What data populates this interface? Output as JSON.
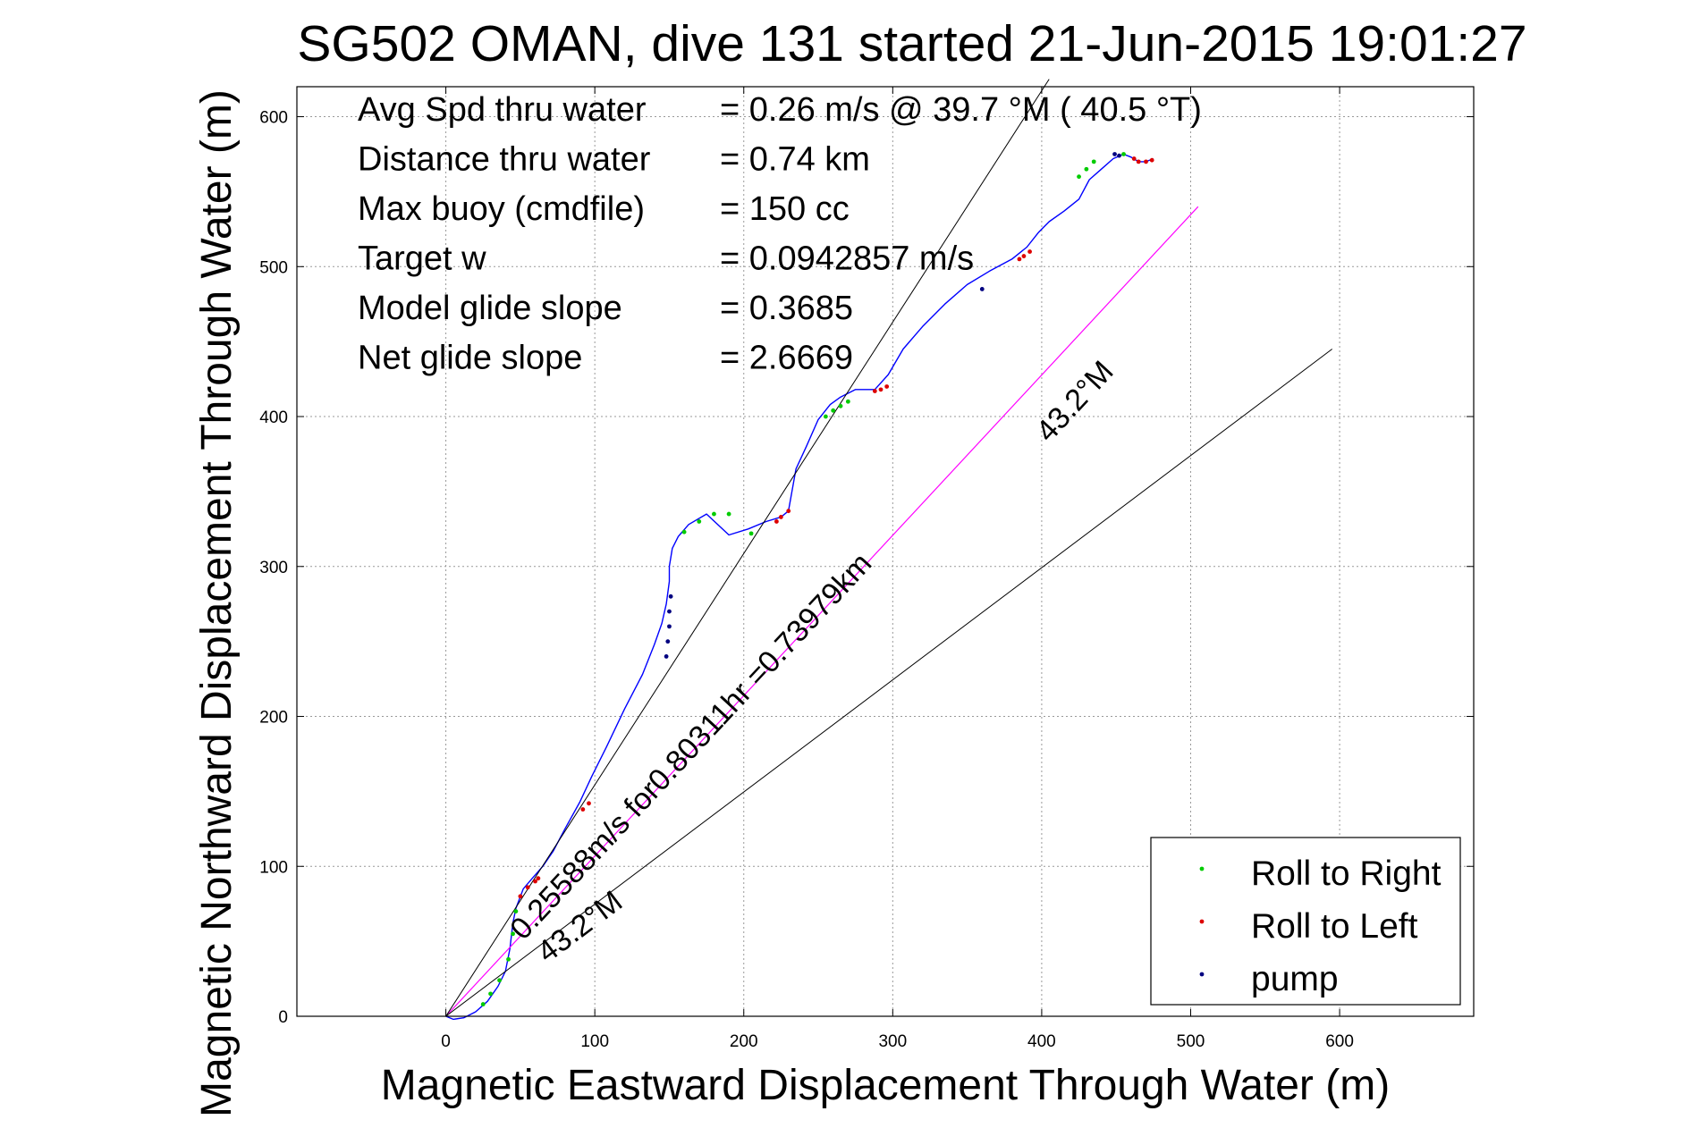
{
  "chart_data": {
    "type": "line",
    "title": "SG502 OMAN, dive 131 started 21-Jun-2015 19:01:27",
    "xlabel": "Magnetic Eastward Displacement Through Water (m)",
    "ylabel": "Magnetic Northward Displacement Through Water (m)",
    "xlim": [
      -100,
      690
    ],
    "ylim": [
      0,
      620
    ],
    "xticks": [
      "0",
      "100",
      "200",
      "300",
      "400",
      "500",
      "600"
    ],
    "yticks": [
      "0",
      "100",
      "200",
      "300",
      "400",
      "500",
      "600"
    ],
    "grid": true,
    "legend_position": "bottom-right",
    "info": [
      {
        "label": "Avg Spd thru water",
        "value": "=  0.26 m/s @  39.7 °M ( 40.5 °T)"
      },
      {
        "label": "Distance thru water",
        "value": "=  0.74 km"
      },
      {
        "label": "Max buoy (cmdfile)",
        "value": "= 150 cc"
      },
      {
        "label": "Target w",
        "value": "= 0.0942857 m/s"
      },
      {
        "label": "Model glide slope",
        "value": "= 0.3685"
      },
      {
        "label": "Net glide slope",
        "value": "= 2.6669"
      }
    ],
    "annotations": {
      "speed_text": "0.25588m/s for0.80311hr =0.73979km",
      "heading_upper": "43.2°M",
      "heading_lower": "43.2°M"
    },
    "legend": [
      {
        "label": "Roll to Right",
        "color": "#00cc00"
      },
      {
        "label": "Roll to Left",
        "color": "#dd0000"
      },
      {
        "label": "pump",
        "color": "#000080"
      }
    ],
    "colors": {
      "track": "#0000ff",
      "heading_line": "#ff00ff",
      "envelope": "#000000"
    },
    "series": [
      {
        "name": "track",
        "x": [
          0,
          5,
          12,
          20,
          28,
          35,
          40,
          43,
          45,
          47,
          52,
          58,
          65,
          72,
          80,
          90,
          98,
          108,
          120,
          132,
          140,
          145,
          148,
          150,
          150,
          152,
          156,
          163,
          175,
          190,
          203,
          215,
          225,
          230,
          235,
          242,
          250,
          258,
          265,
          275,
          288,
          297,
          307,
          320,
          335,
          350,
          365,
          380,
          390,
          398,
          405,
          415,
          425,
          432,
          440,
          448,
          455,
          460,
          465,
          470,
          475
        ],
        "y": [
          0,
          -2,
          -1,
          3,
          10,
          20,
          30,
          45,
          62,
          72,
          85,
          92,
          100,
          110,
          125,
          143,
          160,
          180,
          205,
          228,
          248,
          262,
          275,
          290,
          300,
          312,
          320,
          328,
          335,
          321,
          325,
          330,
          333,
          337,
          365,
          380,
          398,
          408,
          413,
          418,
          418,
          428,
          445,
          460,
          475,
          488,
          497,
          505,
          513,
          523,
          530,
          537,
          545,
          558,
          565,
          572,
          575,
          573,
          570,
          570,
          572
        ]
      },
      {
        "name": "heading_line",
        "x": [
          0,
          505
        ],
        "y": [
          0,
          540
        ]
      },
      {
        "name": "envelope_upper",
        "x": [
          0,
          405
        ],
        "y": [
          0,
          625
        ]
      },
      {
        "name": "envelope_lower",
        "x": [
          0,
          595
        ],
        "y": [
          0,
          445
        ]
      },
      {
        "name": "Roll to Right",
        "x": [
          25,
          30,
          36,
          42,
          45,
          47,
          160,
          170,
          180,
          190,
          205,
          255,
          260,
          265,
          270,
          425,
          430,
          435,
          455
        ],
        "y": [
          8,
          15,
          24,
          38,
          55,
          70,
          323,
          330,
          335,
          335,
          322,
          400,
          404,
          407,
          410,
          560,
          565,
          570,
          575
        ]
      },
      {
        "name": "Roll to Left",
        "x": [
          50,
          55,
          60,
          62,
          92,
          96,
          222,
          225,
          230,
          288,
          292,
          296,
          385,
          388,
          392,
          462,
          465,
          470,
          474
        ],
        "y": [
          80,
          86,
          90,
          92,
          138,
          142,
          330,
          333,
          337,
          417,
          418,
          420,
          505,
          507,
          510,
          572,
          570,
          570,
          571
        ]
      },
      {
        "name": "pump",
        "x": [
          148,
          149,
          150,
          150,
          151,
          360,
          449,
          452
        ],
        "y": [
          240,
          250,
          260,
          270,
          280,
          485,
          575,
          574
        ]
      }
    ]
  }
}
